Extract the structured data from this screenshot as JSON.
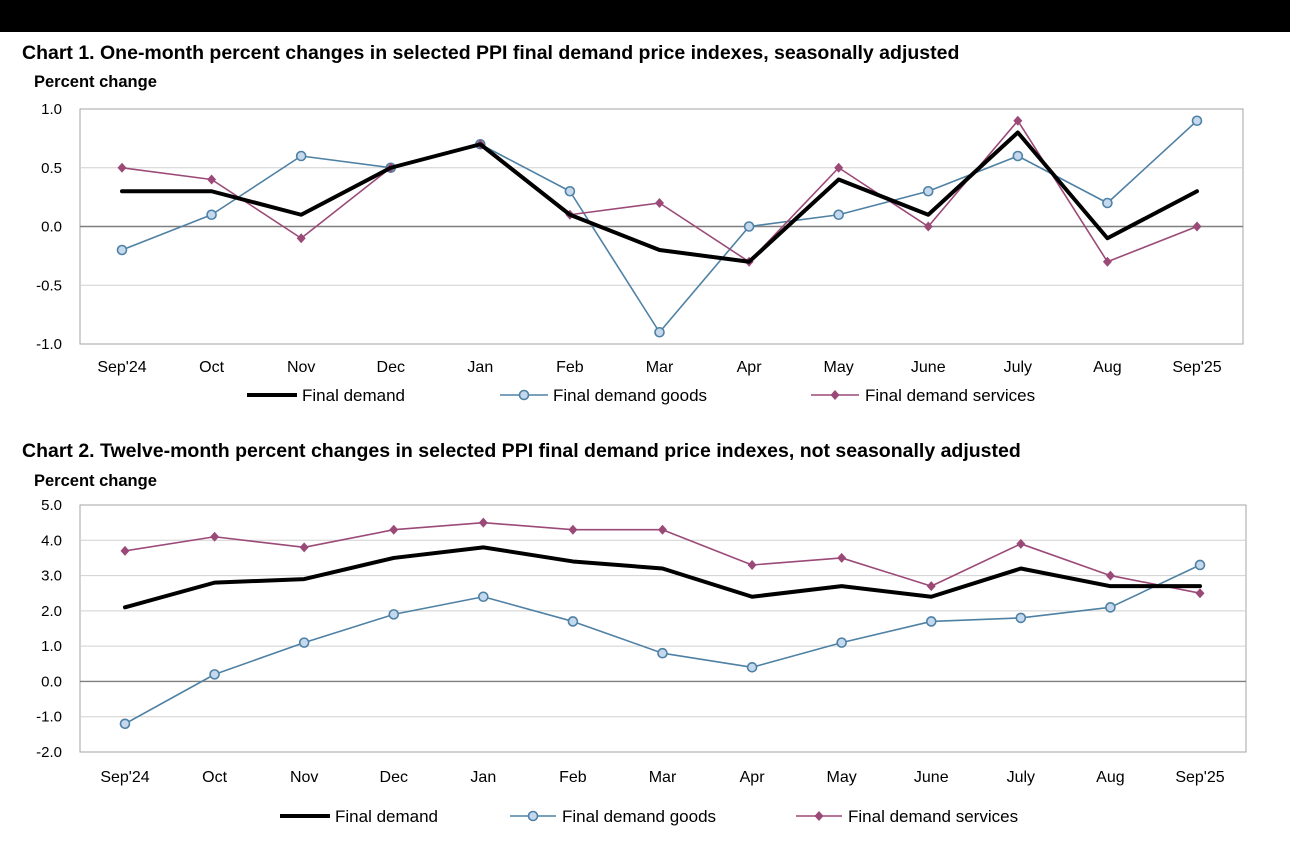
{
  "chart_data": [
    {
      "type": "line",
      "title": "Chart 1. One-month percent changes in selected PPI final demand price indexes, seasonally adjusted",
      "ylabel": "Percent change",
      "xlabel": "",
      "categories": [
        "Sep'24",
        "Oct",
        "Nov",
        "Dec",
        "Jan",
        "Feb",
        "Mar",
        "Apr",
        "May",
        "June",
        "July",
        "Aug",
        "Sep'25"
      ],
      "ylim": [
        -1.0,
        1.0
      ],
      "yticks": [
        "1.0",
        "0.5",
        "0.0",
        "-0.5",
        "-1.0"
      ],
      "ytick_values": [
        1.0,
        0.5,
        0.0,
        -0.5,
        -1.0
      ],
      "grid": true,
      "legend_position": "bottom",
      "series": [
        {
          "name": "Final demand",
          "color": "#000000",
          "marker": "none",
          "values": [
            0.3,
            0.3,
            0.1,
            0.5,
            0.7,
            0.1,
            -0.2,
            -0.3,
            0.4,
            0.1,
            0.8,
            -0.1,
            0.3
          ]
        },
        {
          "name": "Final demand goods",
          "color": "#4f81a4",
          "marker": "circle",
          "values": [
            -0.2,
            0.1,
            0.6,
            0.5,
            0.7,
            0.3,
            -0.9,
            0.0,
            0.1,
            0.3,
            0.6,
            0.2,
            0.9
          ]
        },
        {
          "name": "Final demand services",
          "color": "#9b4a78",
          "marker": "diamond",
          "values": [
            0.5,
            0.4,
            -0.1,
            0.5,
            0.7,
            0.1,
            0.2,
            -0.3,
            0.5,
            0.0,
            0.9,
            -0.3,
            0.0
          ]
        }
      ]
    },
    {
      "type": "line",
      "title": "Chart 2. Twelve-month percent changes in selected PPI final demand price indexes, not seasonally adjusted",
      "ylabel": "Percent change",
      "xlabel": "",
      "categories": [
        "Sep'24",
        "Oct",
        "Nov",
        "Dec",
        "Jan",
        "Feb",
        "Mar",
        "Apr",
        "May",
        "June",
        "July",
        "Aug",
        "Sep'25"
      ],
      "ylim": [
        -2.0,
        5.0
      ],
      "yticks": [
        "5.0",
        "4.0",
        "3.0",
        "2.0",
        "1.0",
        "0.0",
        "-1.0",
        "-2.0"
      ],
      "ytick_values": [
        5.0,
        4.0,
        3.0,
        2.0,
        1.0,
        0.0,
        -1.0,
        -2.0
      ],
      "grid": true,
      "legend_position": "bottom",
      "series": [
        {
          "name": "Final demand",
          "color": "#000000",
          "marker": "none",
          "values": [
            2.1,
            2.8,
            2.9,
            3.5,
            3.8,
            3.4,
            3.2,
            2.4,
            2.7,
            2.4,
            3.2,
            2.7,
            2.7
          ]
        },
        {
          "name": "Final demand goods",
          "color": "#4f81a4",
          "marker": "circle",
          "values": [
            -1.2,
            0.2,
            1.1,
            1.9,
            2.4,
            1.7,
            0.8,
            0.4,
            1.1,
            1.7,
            1.8,
            2.1,
            3.3
          ]
        },
        {
          "name": "Final demand services",
          "color": "#9b4a78",
          "marker": "diamond",
          "values": [
            3.7,
            4.1,
            3.8,
            4.3,
            4.5,
            4.3,
            4.3,
            3.3,
            3.5,
            2.7,
            3.9,
            3.0,
            2.5
          ]
        }
      ]
    }
  ]
}
